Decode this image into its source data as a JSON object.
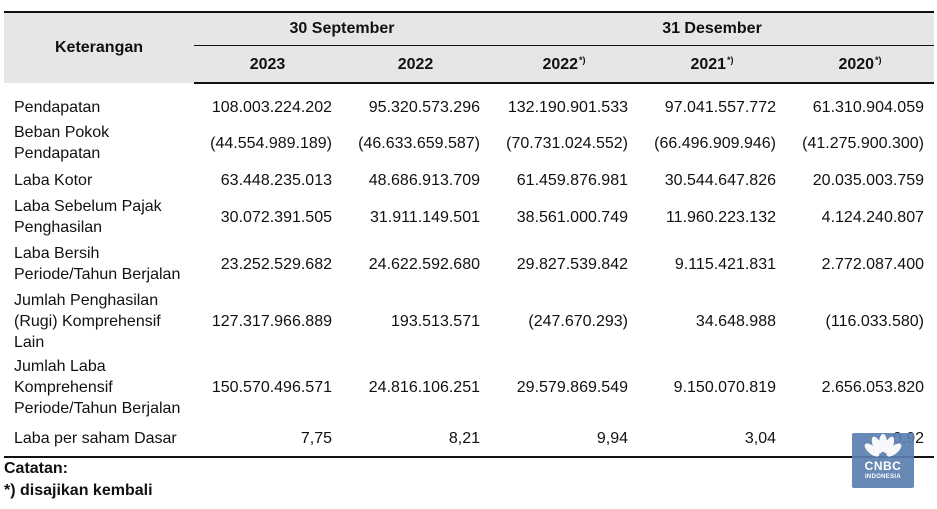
{
  "header": {
    "keterangan": "Keterangan",
    "group_sept": "30 September",
    "group_des": "31 Desember",
    "years": [
      "2023",
      "2022",
      "2022",
      "2021",
      "2020"
    ],
    "year_marks": [
      "",
      "",
      "*)",
      "*)",
      "*)"
    ]
  },
  "rows": [
    {
      "label": "Pendapatan",
      "values": [
        "108.003.224.202",
        "95.320.573.296",
        "132.190.901.533",
        "97.041.557.772",
        "61.310.904.059"
      ]
    },
    {
      "label": "Beban Pokok Pendapatan",
      "values": [
        "(44.554.989.189)",
        "(46.633.659.587)",
        "(70.731.024.552)",
        "(66.496.909.946)",
        "(41.275.900.300)"
      ]
    },
    {
      "label": "Laba Kotor",
      "values": [
        "63.448.235.013",
        "48.686.913.709",
        "61.459.876.981",
        "30.544.647.826",
        "20.035.003.759"
      ]
    },
    {
      "label": "Laba Sebelum Pajak Penghasilan",
      "values": [
        "30.072.391.505",
        "31.911.149.501",
        "38.561.000.749",
        "11.960.223.132",
        "4.124.240.807"
      ]
    },
    {
      "label": "Laba Bersih Periode/Tahun Berjalan",
      "values": [
        "23.252.529.682",
        "24.622.592.680",
        "29.827.539.842",
        "9.115.421.831",
        "2.772.087.400"
      ]
    },
    {
      "label": "Jumlah Penghasilan (Rugi) Komprehensif Lain",
      "values": [
        "127.317.966.889",
        "193.513.571",
        "(247.670.293)",
        "34.648.988",
        "(116.033.580)"
      ]
    },
    {
      "label": "Jumlah Laba Komprehensif Periode/Tahun Berjalan",
      "values": [
        "150.570.496.571",
        "24.816.106.251",
        "29.579.869.549",
        "9.150.070.819",
        "2.656.053.820"
      ]
    },
    {
      "label": "Laba per saham Dasar",
      "values": [
        "7,75",
        "8,21",
        "9,94",
        "3,04",
        "0,92"
      ]
    }
  ],
  "notes": {
    "title": "Catatan:",
    "line1": "*) disajikan kembali"
  },
  "watermark": {
    "brand": "CNBC",
    "sub": "INDONESIA",
    "icon": "peacock-logo-icon",
    "color": "#5b7faf"
  }
}
